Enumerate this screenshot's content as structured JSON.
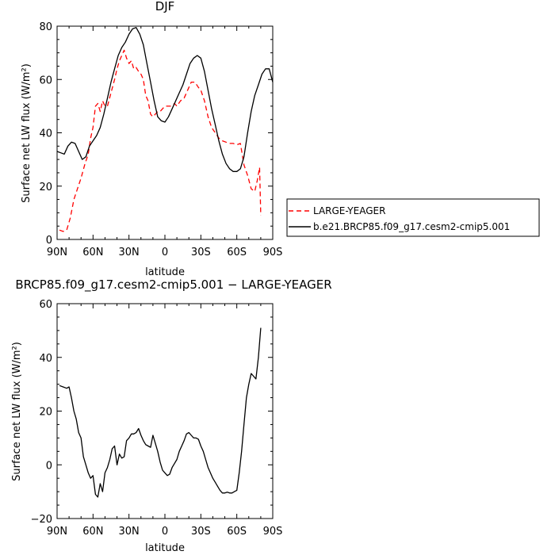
{
  "chart_data": [
    {
      "type": "line",
      "title": "DJF",
      "xlabel": "latitude",
      "ylabel": "Surface net LW flux (W/m²)",
      "xlim": [
        90,
        -90
      ],
      "ylim": [
        0,
        80
      ],
      "xticks": [
        90,
        60,
        30,
        0,
        -30,
        -60,
        -90
      ],
      "xtick_labels": [
        "90N",
        "60N",
        "30N",
        "0",
        "30S",
        "60S",
        "90S"
      ],
      "yticks": [
        0,
        20,
        40,
        60,
        80
      ],
      "ytick_labels": [
        "0",
        "20",
        "40",
        "60",
        "80"
      ],
      "legend_position": "right",
      "series": [
        {
          "name": "LARGE-YEAGER",
          "color": "#ff0000",
          "dash": "dashed",
          "x": [
            88,
            85,
            82,
            79,
            76,
            73,
            70,
            67,
            64,
            62,
            60,
            58,
            56,
            54,
            52,
            50,
            48,
            45,
            42,
            40,
            38,
            36,
            34,
            32,
            30,
            28,
            26,
            24,
            22,
            20,
            18,
            16,
            14,
            12,
            10,
            8,
            6,
            4,
            2,
            0,
            -2,
            -5,
            -8,
            -10,
            -13,
            -16,
            -19,
            -22,
            -25,
            -28,
            -30,
            -33,
            -36,
            -39,
            -42,
            -45,
            -48,
            -51,
            -54,
            -57,
            -60,
            -63,
            -66,
            -69,
            -72,
            -75,
            -77,
            -79,
            -80
          ],
          "y": [
            3.5,
            3.0,
            3.5,
            8,
            15,
            19,
            23,
            28,
            32,
            38,
            42,
            50,
            51,
            48,
            52,
            50,
            50,
            55,
            60,
            64,
            67,
            69,
            71,
            68,
            66,
            67,
            64,
            64.5,
            63,
            62,
            60,
            54,
            52,
            47,
            46,
            47,
            48,
            48,
            49,
            50,
            50,
            50,
            51,
            50,
            52,
            53,
            56,
            59,
            59,
            57,
            56,
            52,
            46,
            42,
            40,
            38,
            37,
            36.5,
            36,
            36,
            35.5,
            36,
            28,
            24,
            19,
            18,
            22,
            27,
            9
          ]
        },
        {
          "name": "b.e21.BRCP85.f09_g17.cesm2-cmip5.001",
          "color": "#000000",
          "dash": "solid",
          "x": [
            90,
            87,
            84,
            81,
            78,
            75,
            72,
            69,
            66,
            63,
            60,
            57,
            54,
            51,
            48,
            45,
            42,
            39,
            36,
            33,
            30,
            27,
            24,
            21,
            18,
            15,
            12,
            9,
            6,
            3,
            0,
            -3,
            -6,
            -9,
            -12,
            -15,
            -18,
            -21,
            -24,
            -27,
            -30,
            -33,
            -36,
            -39,
            -42,
            -45,
            -48,
            -51,
            -54,
            -57,
            -60,
            -63,
            -66,
            -69,
            -72,
            -75,
            -78,
            -81,
            -84,
            -87,
            -90
          ],
          "y": [
            33,
            32.5,
            32,
            35,
            36.5,
            36,
            33,
            30,
            31,
            35,
            37,
            39,
            42,
            47,
            53,
            59,
            64,
            69,
            72,
            74,
            77,
            79,
            79.5,
            77,
            73,
            66,
            59,
            52,
            46,
            44.5,
            44,
            46,
            49,
            52,
            55,
            58,
            62,
            66,
            68,
            69,
            68,
            63,
            56,
            49,
            43,
            37,
            32,
            28.5,
            26.5,
            25.5,
            25.5,
            26.5,
            31,
            40,
            48,
            54,
            58,
            62,
            64,
            64,
            59
          ]
        }
      ]
    },
    {
      "type": "line",
      "title": "BRCP85.f09_g17.cesm2-cmip5.001 − LARGE-YEAGER",
      "xlabel": "latitude",
      "ylabel": "Surface net LW flux (W/m²)",
      "xlim": [
        90,
        -90
      ],
      "ylim": [
        -20,
        60
      ],
      "xticks": [
        90,
        60,
        30,
        0,
        -30,
        -60,
        -90
      ],
      "xtick_labels": [
        "90N",
        "60N",
        "30N",
        "0",
        "30S",
        "60S",
        "90S"
      ],
      "yticks": [
        -20,
        0,
        20,
        40,
        60
      ],
      "ytick_labels": [
        "−20",
        "0",
        "20",
        "40",
        "60"
      ],
      "series": [
        {
          "color": "#000000",
          "dash": "solid",
          "x": [
            88,
            85,
            82,
            80,
            78,
            76,
            74,
            72,
            70,
            68,
            66,
            64,
            62,
            60,
            58,
            56,
            54,
            52,
            50,
            48,
            46,
            44,
            42,
            40,
            38,
            36,
            34,
            32,
            30,
            28,
            26,
            24,
            22,
            20,
            18,
            16,
            14,
            12,
            10,
            8,
            6,
            4,
            2,
            0,
            -2,
            -4,
            -6,
            -8,
            -10,
            -12,
            -14,
            -16,
            -18,
            -20,
            -22,
            -24,
            -26,
            -28,
            -30,
            -32,
            -34,
            -36,
            -38,
            -40,
            -42,
            -44,
            -46,
            -48,
            -50,
            -52,
            -54,
            -56,
            -58,
            -60,
            -62,
            -64,
            -66,
            -68,
            -70,
            -72,
            -74,
            -76,
            -78,
            -80
          ],
          "y": [
            29.5,
            29,
            28.5,
            29,
            25,
            20,
            17,
            12,
            10,
            3,
            0,
            -3,
            -5,
            -4,
            -11,
            -12,
            -7,
            -10,
            -3,
            -1,
            2,
            6,
            7,
            0,
            4,
            2.5,
            3,
            9,
            10,
            11.5,
            11.5,
            12,
            13.5,
            11,
            9,
            7.5,
            7,
            6.5,
            11,
            8,
            5,
            1,
            -2,
            -3,
            -4,
            -3.5,
            -1,
            0.5,
            2,
            5,
            7,
            9,
            11.5,
            12,
            11,
            10,
            10,
            9.5,
            7,
            5,
            2,
            -1,
            -3,
            -5,
            -6.5,
            -8,
            -9.5,
            -10.5,
            -10.5,
            -10.2,
            -10.5,
            -10.5,
            -10,
            -9.5,
            -3,
            5,
            15,
            25,
            30,
            34,
            33,
            32,
            40,
            51
          ]
        }
      ]
    }
  ]
}
